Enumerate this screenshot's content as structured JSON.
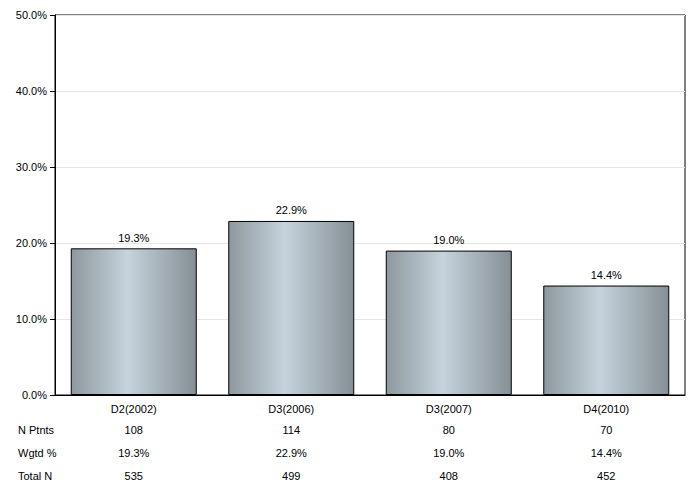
{
  "chart_data": {
    "type": "bar",
    "categories": [
      "D2(2002)",
      "D3(2006)",
      "D3(2007)",
      "D4(2010)"
    ],
    "values": [
      19.3,
      22.9,
      19.0,
      14.4
    ],
    "value_labels": [
      "19.3%",
      "22.9%",
      "19.0%",
      "14.4%"
    ],
    "color": "#c5d3dc",
    "ylim": [
      0,
      50
    ],
    "yticks": [
      {
        "value": 0,
        "label": "0.0%"
      },
      {
        "value": 10,
        "label": "10.0%"
      },
      {
        "value": 20,
        "label": "20.0%"
      },
      {
        "value": 30,
        "label": "30.0%"
      },
      {
        "value": 40,
        "label": "40.0%"
      },
      {
        "value": 50,
        "label": "50.0%"
      }
    ],
    "grid": true,
    "data_labels": true,
    "table": [
      {
        "label": "N Ptnts",
        "values": [
          108,
          114,
          80,
          70
        ]
      },
      {
        "label": "Wgtd %",
        "values": [
          19.3,
          22.9,
          19.0,
          14.4
        ],
        "value_labels": [
          "19.3%",
          "22.9%",
          "19.0%",
          "14.4%"
        ]
      },
      {
        "label": "Total N",
        "values": [
          535,
          499,
          408,
          452
        ]
      }
    ]
  }
}
